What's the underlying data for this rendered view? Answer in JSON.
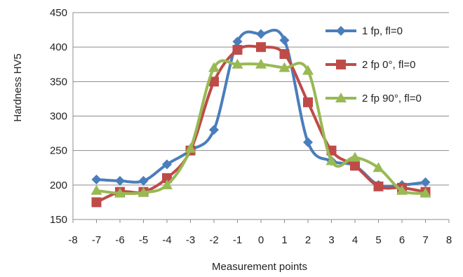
{
  "chart_data": {
    "type": "line",
    "xlabel": "Measurement points",
    "ylabel": "Hardness HV5",
    "xlim": [
      -8,
      8
    ],
    "ylim": [
      150,
      450
    ],
    "x_ticks": [
      -8,
      -7,
      -6,
      -5,
      -4,
      -3,
      -2,
      -1,
      0,
      1,
      2,
      3,
      4,
      5,
      6,
      7,
      8
    ],
    "y_ticks": [
      150,
      200,
      250,
      300,
      350,
      400,
      450
    ],
    "grid": "horizontal",
    "legend_position": "right",
    "smoothed": true,
    "x": [
      -7,
      -6,
      -5,
      -4,
      -3,
      -2,
      -1,
      0,
      1,
      2,
      3,
      4,
      5,
      6,
      7
    ],
    "series": [
      {
        "name": "1 fp, fl=0",
        "color": "#4a7ebb",
        "marker": "diamond",
        "values": [
          208,
          206,
          206,
          230,
          250,
          280,
          408,
          419,
          410,
          262,
          235,
          228,
          200,
          200,
          204
        ]
      },
      {
        "name": "2 fp 0°, fl=0",
        "color": "#be4b48",
        "marker": "square",
        "values": [
          175,
          190,
          190,
          210,
          250,
          350,
          396,
          400,
          390,
          320,
          250,
          228,
          198,
          196,
          190
        ]
      },
      {
        "name": "2 fp 90°, fl=0",
        "color": "#98b954",
        "marker": "triangle",
        "values": [
          192,
          188,
          189,
          200,
          253,
          370,
          375,
          375,
          370,
          366,
          235,
          240,
          225,
          192,
          188
        ]
      }
    ]
  }
}
